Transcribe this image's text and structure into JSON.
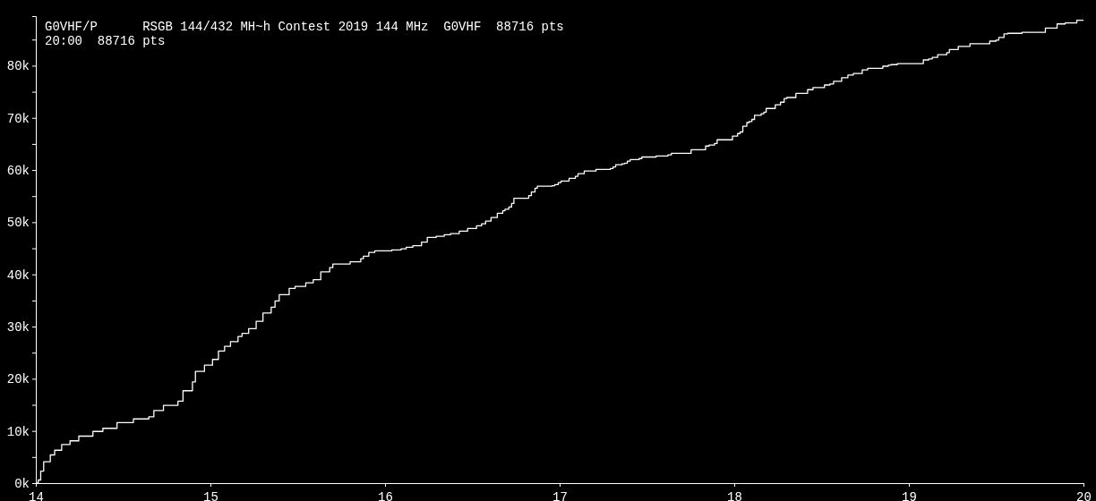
{
  "chart_data": {
    "type": "step",
    "title": "G0VHF/P      RSGB 144/432 MH~h Contest 2019 144 MHz  G0VHF  88716 pts",
    "subtitle": "20:00  88716 pts",
    "x": [
      14,
      14.014,
      14.028,
      14.045,
      14.083,
      14.108,
      14.148,
      14.196,
      14.246,
      14.327,
      14.384,
      14.465,
      14.559,
      14.647,
      14.676,
      14.731,
      14.814,
      14.843,
      14.897,
      14.914,
      14.966,
      15.012,
      15.046,
      15.081,
      15.115,
      15.158,
      15.181,
      15.219,
      15.262,
      15.301,
      15.348,
      15.37,
      15.394,
      15.451,
      15.485,
      15.546,
      15.589,
      15.632,
      15.683,
      15.701,
      15.8,
      15.861,
      15.876,
      15.907,
      15.941,
      16.039,
      16.092,
      16.121,
      16.159,
      16.209,
      16.242,
      16.293,
      16.339,
      16.375,
      16.425,
      16.473,
      16.524,
      16.553,
      16.576,
      16.607,
      16.643,
      16.674,
      16.687,
      16.709,
      16.725,
      16.738,
      16.823,
      16.838,
      16.859,
      16.872,
      16.956,
      16.972,
      16.992,
      17.008,
      17.054,
      17.09,
      17.105,
      17.141,
      17.208,
      17.29,
      17.306,
      17.321,
      17.357,
      17.373,
      17.388,
      17.404,
      17.455,
      17.471,
      17.553,
      17.62,
      17.64,
      17.753,
      17.836,
      17.856,
      17.887,
      17.902,
      17.99,
      18.019,
      18.034,
      18.049,
      18.072,
      18.085,
      18.101,
      18.116,
      18.154,
      18.17,
      18.183,
      18.235,
      18.265,
      18.286,
      18.301,
      18.353,
      18.42,
      18.451,
      18.517,
      18.548,
      18.569,
      18.615,
      18.651,
      18.682,
      18.733,
      18.764,
      18.851,
      18.882,
      18.898,
      18.934,
      19.083,
      19.114,
      19.134,
      19.165,
      19.217,
      19.232,
      19.283,
      19.35,
      19.463,
      19.499,
      19.515,
      19.545,
      19.566,
      19.648,
      19.782,
      19.849,
      19.895,
      19.962,
      20
    ],
    "values": [
      0,
      600,
      2300,
      4100,
      5400,
      6300,
      7400,
      8100,
      9000,
      9900,
      10500,
      11600,
      12300,
      12700,
      13900,
      14900,
      15700,
      17700,
      19400,
      21400,
      22600,
      23700,
      25300,
      26200,
      27100,
      28100,
      28700,
      29600,
      31000,
      32600,
      33700,
      34900,
      36100,
      37300,
      37700,
      38400,
      39000,
      40500,
      41300,
      42000,
      42400,
      43000,
      43500,
      44200,
      44500,
      44700,
      44900,
      45200,
      45500,
      46200,
      47100,
      47300,
      47600,
      47800,
      48300,
      48800,
      49300,
      49700,
      50200,
      50900,
      51700,
      52200,
      52500,
      52900,
      53600,
      54600,
      55100,
      55800,
      56500,
      56900,
      57000,
      57200,
      57600,
      57900,
      58400,
      58800,
      59300,
      59800,
      60100,
      60300,
      60600,
      61000,
      61200,
      61300,
      61700,
      62000,
      62200,
      62500,
      62700,
      62900,
      63200,
      63900,
      64600,
      64800,
      65100,
      65800,
      66500,
      67000,
      67300,
      68400,
      69100,
      69300,
      69700,
      70500,
      70800,
      71100,
      71800,
      72500,
      73000,
      73700,
      73900,
      74700,
      75400,
      75800,
      76300,
      76500,
      77000,
      77700,
      78200,
      78500,
      79200,
      79500,
      79900,
      80100,
      80200,
      80400,
      81100,
      81300,
      81600,
      82100,
      82500,
      83100,
      83700,
      84200,
      84700,
      84900,
      85400,
      86100,
      86200,
      86400,
      87200,
      88000,
      88200,
      88716,
      88716
    ],
    "color": "#ffffff",
    "xlim": [
      14,
      20
    ],
    "xticks": [
      14,
      15,
      16,
      17,
      18,
      19,
      20
    ],
    "ylim": [
      0,
      89500
    ],
    "yticks": [
      {
        "value": 0,
        "label": "0k"
      },
      {
        "value": 5000,
        "label": null
      },
      {
        "value": 10000,
        "label": "10k"
      },
      {
        "value": 15000,
        "label": null
      },
      {
        "value": 20000,
        "label": "20k"
      },
      {
        "value": 25000,
        "label": null
      },
      {
        "value": 30000,
        "label": "30k"
      },
      {
        "value": 35000,
        "label": null
      },
      {
        "value": 40000,
        "label": "40k"
      },
      {
        "value": 45000,
        "label": null
      },
      {
        "value": 50000,
        "label": "50k"
      },
      {
        "value": 55000,
        "label": null
      },
      {
        "value": 60000,
        "label": "60k"
      },
      {
        "value": 65000,
        "label": null
      },
      {
        "value": 70000,
        "label": "70k"
      },
      {
        "value": 75000,
        "label": null
      },
      {
        "value": 80000,
        "label": "80k"
      },
      {
        "value": 85000,
        "label": null
      }
    ],
    "grid": false
  }
}
